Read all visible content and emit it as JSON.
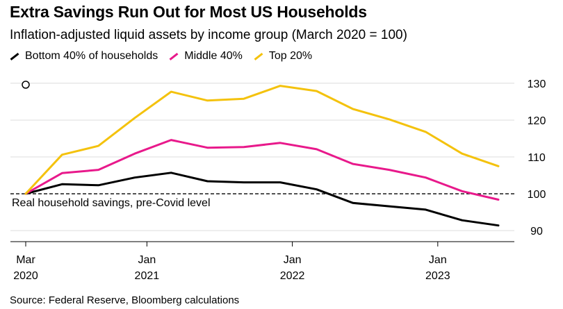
{
  "title": "Extra Savings Run Out for Most US Households",
  "subtitle": "Inflation-adjusted liquid assets by income group (March 2020 = 100)",
  "source": "Source: Federal Reserve, Bloomberg calculations",
  "chart_data": {
    "type": "line",
    "x": [
      "2020-03",
      "2020-06",
      "2020-09",
      "2020-12",
      "2021-03",
      "2021-06",
      "2021-09",
      "2021-12",
      "2022-03",
      "2022-06",
      "2022-09",
      "2022-12",
      "2023-03",
      "2023-06"
    ],
    "series": [
      {
        "name": "Bottom 40% of households",
        "color": "#000000",
        "values": [
          100,
          102.6,
          102.3,
          104.4,
          105.7,
          103.4,
          103.1,
          103.1,
          101.2,
          97.5,
          96.6,
          95.7,
          92.8,
          91.4
        ]
      },
      {
        "name": "Middle 40%",
        "color": "#e8198b",
        "values": [
          100,
          105.6,
          106.5,
          110.9,
          114.6,
          112.5,
          112.7,
          113.8,
          112.1,
          108.1,
          106.5,
          104.4,
          100.7,
          98.4
        ]
      },
      {
        "name": "Top 20%",
        "color": "#f4c20d",
        "values": [
          100,
          110.6,
          113.0,
          120.6,
          127.7,
          125.3,
          125.8,
          129.3,
          127.9,
          123.0,
          120.2,
          116.8,
          110.9,
          107.5
        ]
      }
    ],
    "x_ticks": [
      {
        "x": "2020-03",
        "month": "Mar",
        "year": "2020"
      },
      {
        "x": "2021-01",
        "month": "Jan",
        "year": "2021"
      },
      {
        "x": "2022-01",
        "month": "Jan",
        "year": "2022"
      },
      {
        "x": "2023-01",
        "month": "Jan",
        "year": "2023"
      }
    ],
    "y_ticks": [
      90,
      100,
      110,
      120,
      130
    ],
    "ylim": [
      87,
      133
    ],
    "xlim": [
      "2020-03",
      "2023-09"
    ],
    "y_axis_position": "right",
    "grid": "horizontal",
    "legend_position": "top-left",
    "reference_line": {
      "value": 100,
      "label": "Real household savings, pre-Covid level",
      "style": "dashed"
    },
    "start_marker": {
      "x": "2020-03",
      "shape": "open-circle"
    }
  }
}
